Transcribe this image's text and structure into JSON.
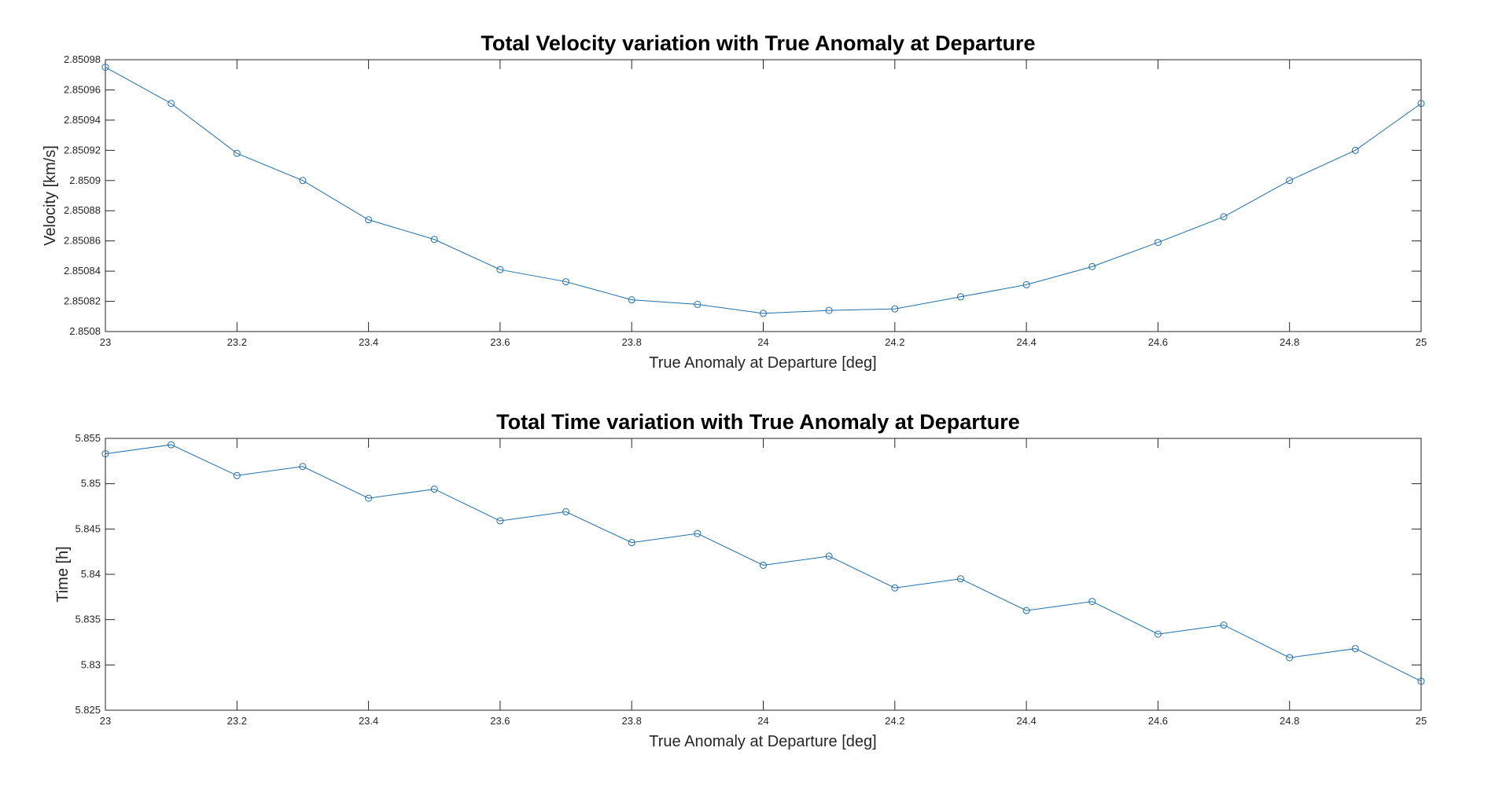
{
  "figure": {
    "background": "#ffffff",
    "series_color": "#1f6faa",
    "axis_color": "#262626"
  },
  "chart_data": [
    {
      "type": "line",
      "title": "Total Velocity variation with True Anomaly at Departure",
      "xlabel": "True Anomaly at Departure [deg]",
      "ylabel": "Velocity [km/s]",
      "xlim": [
        23,
        25
      ],
      "ylim": [
        2.8508,
        2.85098
      ],
      "x_ticks": [
        23,
        23.2,
        23.4,
        23.6,
        23.8,
        24,
        24.2,
        24.4,
        24.6,
        24.8,
        25
      ],
      "x_tick_labels": [
        "23",
        "23.2",
        "23.4",
        "23.6",
        "23.8",
        "24",
        "24.2",
        "24.4",
        "24.6",
        "24.8",
        "25"
      ],
      "y_ticks": [
        2.8508,
        2.85082,
        2.85084,
        2.85086,
        2.85088,
        2.8509,
        2.85092,
        2.85094,
        2.85096,
        2.85098
      ],
      "y_tick_labels": [
        "2.8508",
        "2.85082",
        "2.85084",
        "2.85086",
        "2.85088",
        "2.8509",
        "2.85092",
        "2.85094",
        "2.85096",
        "2.85098"
      ],
      "marker": "circle",
      "grid": false,
      "series": [
        {
          "x": [
            23,
            23.1,
            23.2,
            23.3,
            23.4,
            23.5,
            23.6,
            23.7,
            23.8,
            23.9,
            24,
            24.1,
            24.2,
            24.3,
            24.4,
            24.5,
            24.6,
            24.7,
            24.8,
            24.9,
            25
          ],
          "y": [
            2.850975,
            2.850951,
            2.850918,
            2.8509,
            2.850874,
            2.850861,
            2.850841,
            2.850833,
            2.850821,
            2.850818,
            2.850812,
            2.850814,
            2.850815,
            2.850823,
            2.850831,
            2.850843,
            2.850859,
            2.850876,
            2.8509,
            2.85092,
            2.850951
          ]
        }
      ]
    },
    {
      "type": "line",
      "title": "Total Time variation with True Anomaly at Departure",
      "xlabel": "True Anomaly at Departure [deg]",
      "ylabel": "Time [h]",
      "xlim": [
        23,
        25
      ],
      "ylim": [
        5.825,
        5.855
      ],
      "x_ticks": [
        23,
        23.2,
        23.4,
        23.6,
        23.8,
        24,
        24.2,
        24.4,
        24.6,
        24.8,
        25
      ],
      "x_tick_labels": [
        "23",
        "23.2",
        "23.4",
        "23.6",
        "23.8",
        "24",
        "24.2",
        "24.4",
        "24.6",
        "24.8",
        "25"
      ],
      "y_ticks": [
        5.825,
        5.83,
        5.835,
        5.84,
        5.845,
        5.85,
        5.855
      ],
      "y_tick_labels": [
        "5.825",
        "5.83",
        "5.835",
        "5.84",
        "5.845",
        "5.85",
        "5.855"
      ],
      "marker": "circle",
      "grid": false,
      "series": [
        {
          "x": [
            23,
            23.1,
            23.2,
            23.3,
            23.4,
            23.5,
            23.6,
            23.7,
            23.8,
            23.9,
            24,
            24.1,
            24.2,
            24.3,
            24.4,
            24.5,
            24.6,
            24.7,
            24.8,
            24.9,
            25
          ],
          "y": [
            5.8533,
            5.8543,
            5.8509,
            5.8519,
            5.8484,
            5.8494,
            5.8459,
            5.8469,
            5.8435,
            5.8445,
            5.841,
            5.842,
            5.8385,
            5.8395,
            5.836,
            5.837,
            5.8334,
            5.8344,
            5.8308,
            5.8318,
            5.8282
          ]
        }
      ]
    }
  ]
}
